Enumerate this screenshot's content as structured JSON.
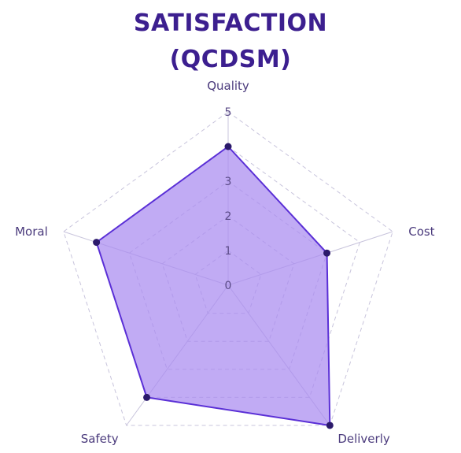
{
  "chart_data": {
    "type": "radar",
    "title_line1": "SATISFACTION",
    "title_line2": "(QCDSM)",
    "categories": [
      "Quality",
      "Cost",
      "Deliverly",
      "Safety",
      "Moral"
    ],
    "series": [
      {
        "values": [
          4,
          3,
          5,
          4,
          4
        ]
      }
    ],
    "rlim": [
      0,
      5
    ],
    "ticks": [
      "0",
      "1",
      "2",
      "3",
      "5"
    ],
    "tick_values": [
      0,
      1,
      2,
      3,
      5
    ],
    "grid": true,
    "colors": {
      "fill": "#a98af0",
      "line": "#5a2fd6",
      "point": "#2b1a6b",
      "grid": "#c8c4dc",
      "title": "#3c1f8f"
    }
  }
}
